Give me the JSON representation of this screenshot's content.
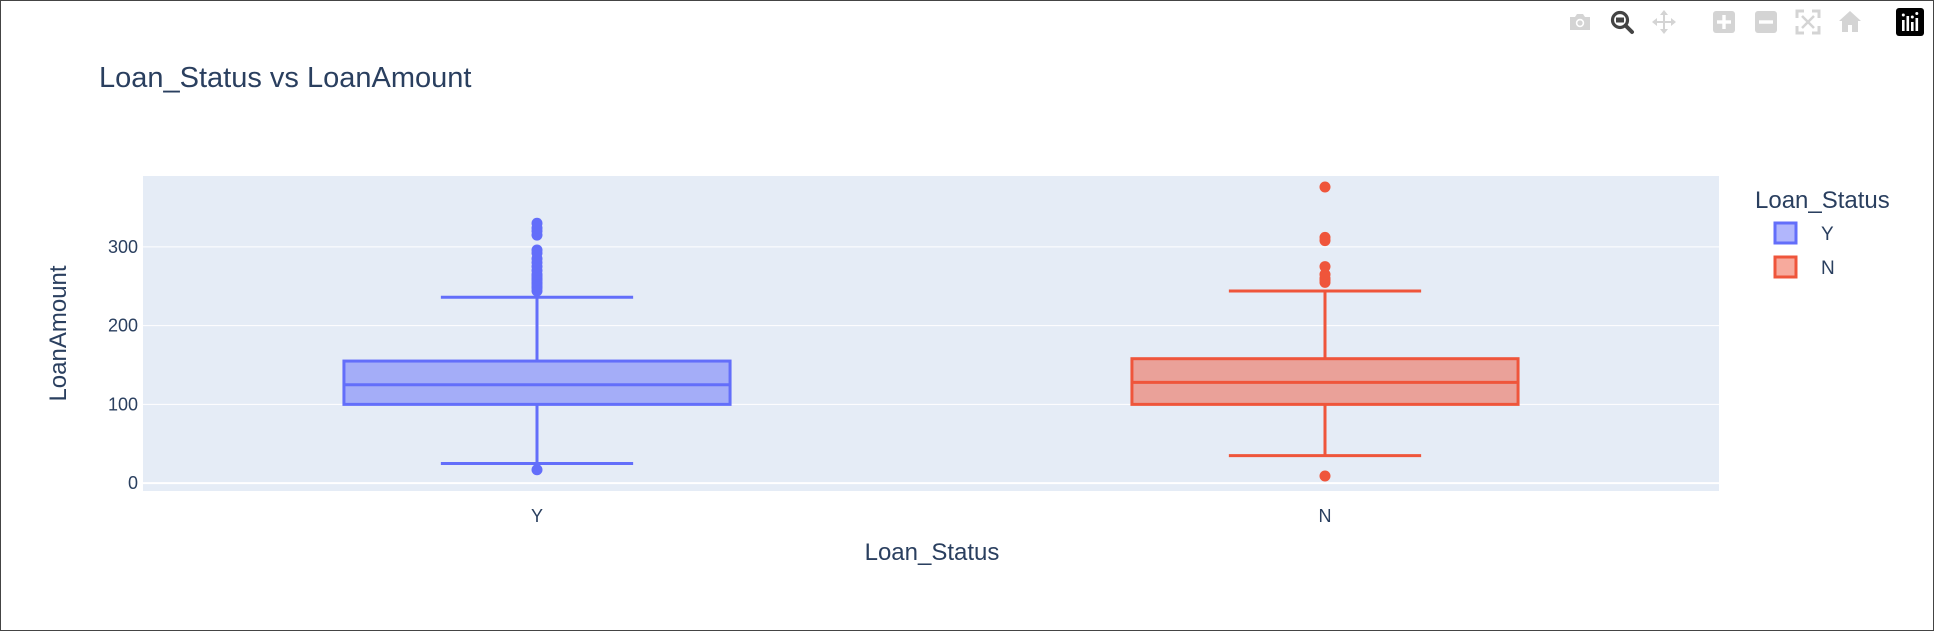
{
  "chart_data": {
    "type": "box",
    "title": "Loan_Status vs LoanAmount",
    "xlabel": "Loan_Status",
    "ylabel": "LoanAmount",
    "categories": [
      "Y",
      "N"
    ],
    "ylim": [
      -10,
      390
    ],
    "yticks": [
      0,
      100,
      200,
      300
    ],
    "grid": true,
    "legend": {
      "title": "Loan_Status",
      "position": "top-right",
      "entries": [
        "Y",
        "N"
      ]
    },
    "series": [
      {
        "name": "Y",
        "color": "#636efa",
        "min": 25,
        "q1": 100,
        "median": 125,
        "q3": 155,
        "max": 236,
        "outliers": [
          17,
          244,
          248,
          250,
          253,
          255,
          258,
          260,
          263,
          265,
          270,
          275,
          280,
          285,
          292,
          296,
          315,
          320,
          324,
          330
        ]
      },
      {
        "name": "N",
        "color": "#ef553b",
        "min": 35,
        "q1": 100,
        "median": 128,
        "q3": 158,
        "max": 244,
        "outliers": [
          9,
          255,
          258,
          260,
          265,
          275,
          308,
          312,
          376
        ]
      }
    ]
  },
  "modebar": {
    "icons": [
      "camera-icon",
      "zoom-icon",
      "pan-icon",
      "zoom-in-icon",
      "zoom-out-icon",
      "autoscale-icon",
      "reset-axes-icon",
      "plotly-logo-icon"
    ],
    "active": "zoom-icon",
    "active_color": "#444444",
    "inactive_color": "#cccccc"
  }
}
